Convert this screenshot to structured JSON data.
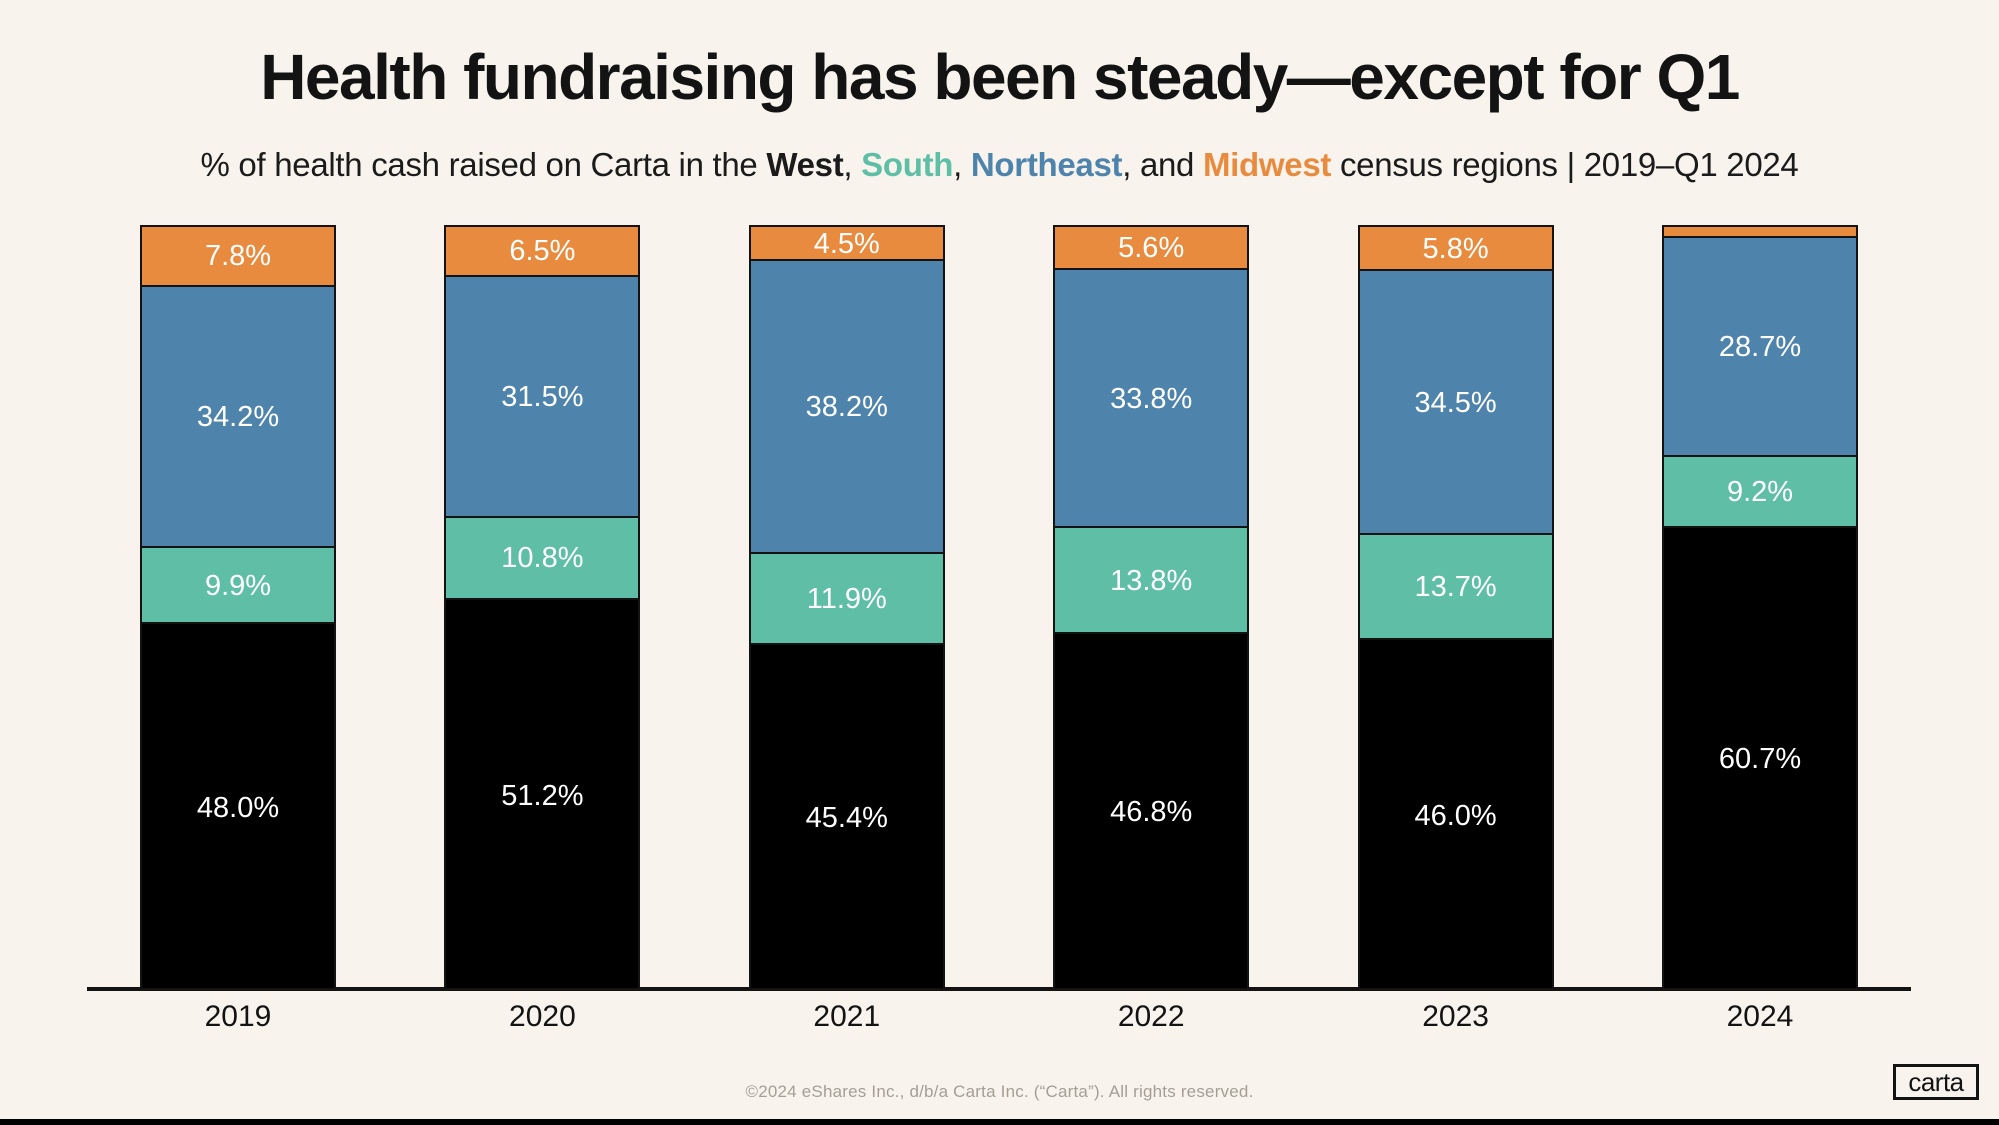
{
  "header": {
    "title": "Health fundraising has been steady—except for Q1",
    "subtitle": {
      "prefix": "% of health cash raised on Carta in the ",
      "west": "West",
      "sep1": ", ",
      "south": "South",
      "sep2": ", ",
      "northeast": "Northeast",
      "sep3": ", and ",
      "midwest": "Midwest",
      "suffix": " census regions | 2019–Q1 2024"
    }
  },
  "chart_data": {
    "type": "bar",
    "stacked": true,
    "title": "Health fundraising has been steady—except for Q1",
    "subtitle": "% of health cash raised on Carta in the West, South, Northeast, and Midwest census regions | 2019–Q1 2024",
    "categories": [
      "2019",
      "2020",
      "2021",
      "2022",
      "2023",
      "2024"
    ],
    "series": [
      {
        "name": "West",
        "color": "#000000",
        "values": [
          48.0,
          51.2,
          45.4,
          46.8,
          46.0,
          60.7
        ],
        "labels": [
          "48.0%",
          "51.2%",
          "45.4%",
          "46.8%",
          "46.0%",
          "60.7%"
        ]
      },
      {
        "name": "South",
        "color": "#5EBEA6",
        "values": [
          9.9,
          10.8,
          11.9,
          13.8,
          13.7,
          9.2
        ],
        "labels": [
          "9.9%",
          "10.8%",
          "11.9%",
          "13.8%",
          "13.7%",
          "9.2%"
        ]
      },
      {
        "name": "Northeast",
        "color": "#4E83AC",
        "values": [
          34.2,
          31.5,
          38.2,
          33.8,
          34.5,
          28.7
        ],
        "labels": [
          "34.2%",
          "31.5%",
          "38.2%",
          "33.8%",
          "34.5%",
          "28.7%"
        ]
      },
      {
        "name": "Midwest",
        "color": "#E98B3E",
        "values": [
          7.8,
          6.5,
          4.5,
          5.6,
          5.8,
          1.4
        ],
        "labels": [
          "7.8%",
          "6.5%",
          "4.5%",
          "5.6%",
          "5.8%",
          ""
        ]
      }
    ],
    "ylim": [
      0,
      100
    ],
    "unit": "%",
    "grid": false,
    "legend_position": "in-subtitle",
    "label_color": "#FFFFFF"
  },
  "colors": {
    "background": "#F8F4ED",
    "axis": "#131313",
    "bar_stroke": "#131313",
    "west": "#000000",
    "south": "#5EBEA6",
    "northeast": "#4E83AC",
    "midwest": "#E98B3E"
  },
  "footer": {
    "copyright": "©2024 eShares Inc., d/b/a Carta Inc. (“Carta”). All rights reserved.",
    "logo": "carta"
  }
}
